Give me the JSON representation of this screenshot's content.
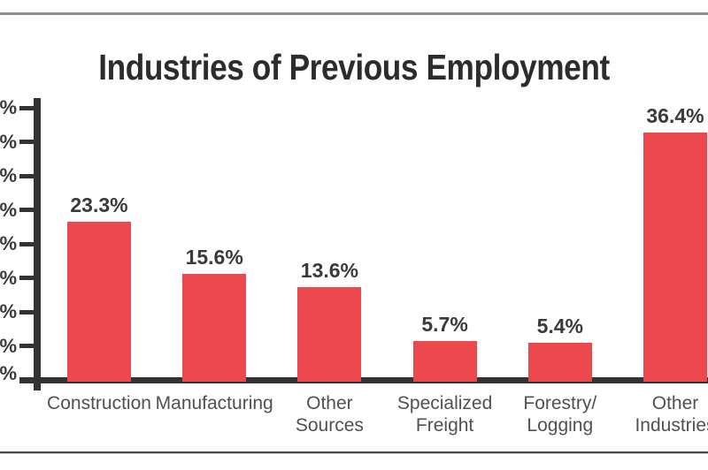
{
  "page": {
    "background_color": "#fefefe",
    "top_rule_color": "#8d8d8d",
    "bottom_rule_dark_color": "#474747",
    "bottom_rule_light_color": "#c8c8c8"
  },
  "chart_data": {
    "type": "bar",
    "title": "Industries of Previous Employment",
    "categories": [
      "Construction",
      "Manufacturing",
      "Other Sources",
      "Specialized Freight",
      "Forestry/Logging",
      "Other Industries"
    ],
    "category_label_lines": [
      [
        "Construction"
      ],
      [
        "Manufacturing"
      ],
      [
        "Other",
        "Sources"
      ],
      [
        "Specialized",
        "Freight"
      ],
      [
        "Forestry/",
        "Logging"
      ],
      [
        "Other",
        "Industries"
      ]
    ],
    "values": [
      23.3,
      15.6,
      13.6,
      5.7,
      5.4,
      36.4
    ],
    "value_labels": [
      "23.3%",
      "15.6%",
      "13.6%",
      "5.7%",
      "5.4%",
      "36.4%"
    ],
    "xlabel": "",
    "ylabel": "",
    "ylim": [
      0,
      40
    ],
    "y_tick_step": 5,
    "y_tick_visible_suffix": "%",
    "y_tick_numbers_cropped_offscreen": true,
    "grid": "off",
    "legend": "none",
    "bar_color": "#ee484f",
    "axis_color": "#333333",
    "title_color": "#2c2c2c",
    "value_label_color": "#3a3a3a",
    "category_label_color": "#515151"
  }
}
